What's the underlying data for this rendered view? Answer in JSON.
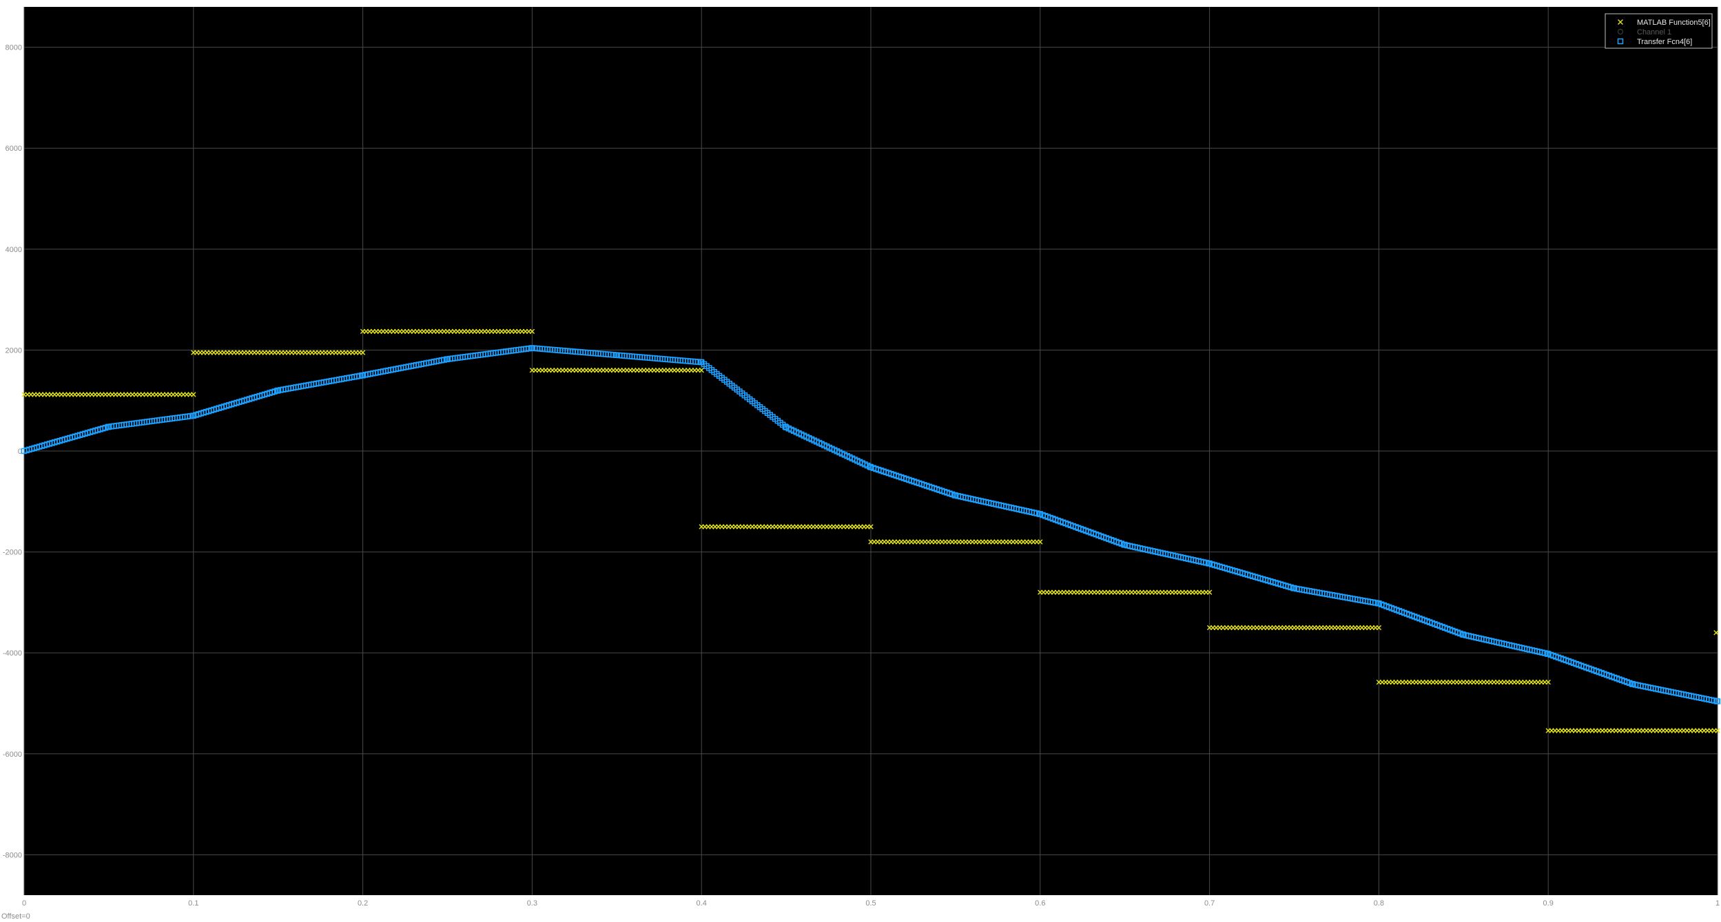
{
  "chart_data": {
    "type": "scatter",
    "title": "",
    "xlabel": "",
    "ylabel": "",
    "xlim": [
      0,
      1
    ],
    "ylim": [
      -8800,
      8800
    ],
    "x_ticks": [
      0,
      0.1,
      0.2,
      0.3,
      0.4,
      0.5,
      0.6,
      0.7,
      0.8,
      0.9,
      1
    ],
    "x_tick_labels": [
      "0",
      "0.1",
      "0.2",
      "0.3",
      "0.4",
      "0.5",
      "0.6",
      "0.7",
      "0.8",
      "0.9",
      "1"
    ],
    "y_ticks": [
      -8000,
      -6000,
      -4000,
      -2000,
      0,
      2000,
      4000,
      6000,
      8000
    ],
    "y_tick_labels": [
      "-8000",
      "-6000",
      "-4000",
      "-2000",
      "0",
      "2000",
      "4000",
      "6000",
      "8000"
    ],
    "grid": true,
    "legend_position": "top-right",
    "offset_label": "Offset=0",
    "background_color": "#000000",
    "grid_color": "#4a4a4a",
    "series": [
      {
        "name": "MATLAB Function5[6]",
        "marker": "x-marker",
        "color": "#e6e619",
        "visible": true,
        "segments": [
          {
            "x": [
              0.0,
              0.1
            ],
            "y": 1120
          },
          {
            "x": [
              0.1,
              0.2
            ],
            "y": 1950
          },
          {
            "x": [
              0.2,
              0.3
            ],
            "y": 2370
          },
          {
            "x": [
              0.3,
              0.4
            ],
            "y": 1600
          },
          {
            "x": [
              0.4,
              0.5
            ],
            "y": -1500
          },
          {
            "x": [
              0.5,
              0.6
            ],
            "y": -1800
          },
          {
            "x": [
              0.6,
              0.7
            ],
            "y": -2800
          },
          {
            "x": [
              0.7,
              0.8
            ],
            "y": -3500
          },
          {
            "x": [
              0.8,
              0.9
            ],
            "y": -4580
          },
          {
            "x": [
              0.9,
              1.0
            ],
            "y": -5540
          }
        ],
        "extra_points": [
          {
            "x": 1.0,
            "y": -3600
          }
        ]
      },
      {
        "name": "Channel 1",
        "marker": "circle-marker",
        "color": "#3a3a3a",
        "visible": false
      },
      {
        "name": "Transfer Fcn4[6]",
        "marker": "square-marker",
        "color": "#1ea0ff",
        "visible": true,
        "x": [
          0,
          0.05,
          0.1,
          0.15,
          0.2,
          0.25,
          0.3,
          0.35,
          0.4,
          0.45,
          0.5,
          0.55,
          0.6,
          0.65,
          0.7,
          0.75,
          0.8,
          0.85,
          0.9,
          0.95,
          1.0
        ],
        "y": [
          0,
          480,
          700,
          1200,
          1500,
          1820,
          2040,
          1900,
          1760,
          470,
          -320,
          -880,
          -1250,
          -1860,
          -2230,
          -2720,
          -3020,
          -3640,
          -4020,
          -4620,
          -4960
        ]
      }
    ]
  }
}
